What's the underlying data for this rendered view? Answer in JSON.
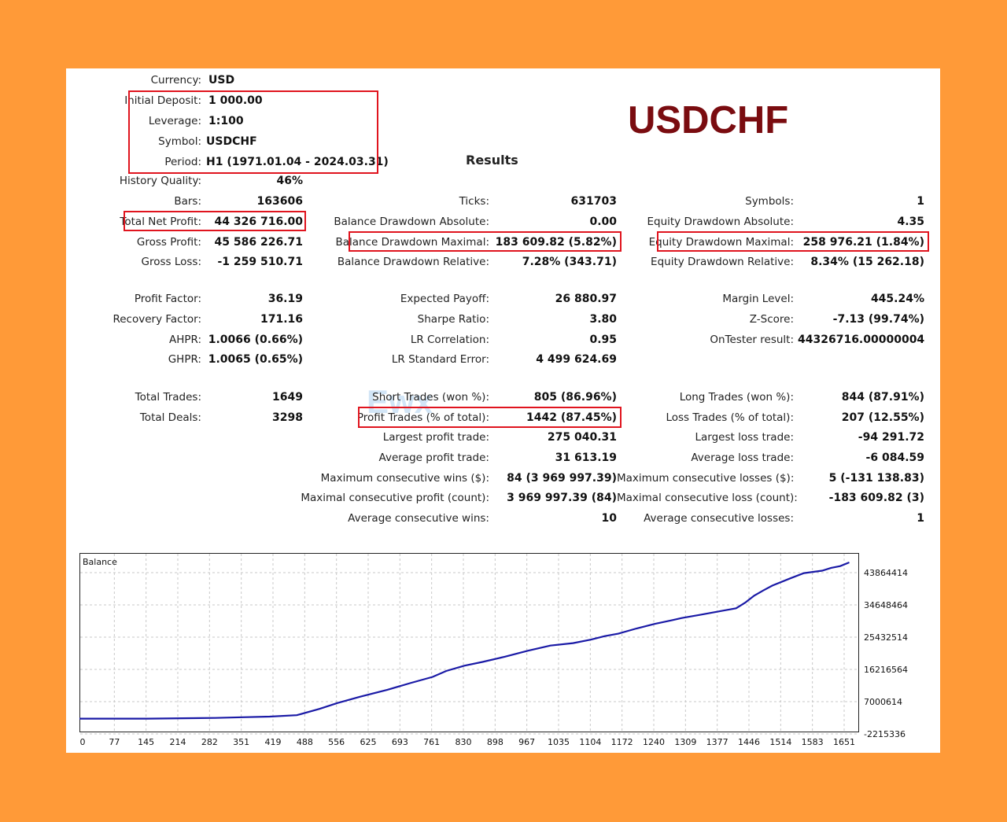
{
  "symbol_title": "USDCHF",
  "results_title": "Results",
  "watermark": "Ewx",
  "left_top": [
    {
      "label": "Currency:",
      "value": "USD"
    },
    {
      "label": "Initial Deposit:",
      "value": "1 000.00"
    },
    {
      "label": "Leverage:",
      "value": "1:100"
    },
    {
      "label": "Symbol:",
      "value": "USDCHF"
    },
    {
      "label": "Period:",
      "value": "H1 (1971.01.04 - 2024.03.31)"
    }
  ],
  "history_quality": {
    "label": "History Quality:",
    "value": "46%"
  },
  "col1": [
    {
      "label": "Bars:",
      "value": "163606"
    },
    {
      "label": "Total Net Profit:",
      "value": "44 326 716.00"
    },
    {
      "label": "Gross Profit:",
      "value": "45 586 226.71"
    },
    {
      "label": "Gross Loss:",
      "value": "-1 259 510.71"
    },
    {
      "label": "Profit Factor:",
      "value": "36.19"
    },
    {
      "label": "Recovery Factor:",
      "value": "171.16"
    },
    {
      "label": "AHPR:",
      "value": "1.0066 (0.66%)"
    },
    {
      "label": "GHPR:",
      "value": "1.0065 (0.65%)"
    },
    {
      "label": "Total Trades:",
      "value": "1649"
    },
    {
      "label": "Total Deals:",
      "value": "3298"
    }
  ],
  "col2": [
    {
      "label": "Ticks:",
      "value": "631703"
    },
    {
      "label": "Balance Drawdown Absolute:",
      "value": "0.00"
    },
    {
      "label": "Balance Drawdown Maximal:",
      "value": "183 609.82 (5.82%)"
    },
    {
      "label": "Balance Drawdown Relative:",
      "value": "7.28% (343.71)"
    },
    {
      "label": "Expected Payoff:",
      "value": "26 880.97"
    },
    {
      "label": "Sharpe Ratio:",
      "value": "3.80"
    },
    {
      "label": "LR Correlation:",
      "value": "0.95"
    },
    {
      "label": "LR Standard Error:",
      "value": "4 499 624.69"
    },
    {
      "label": "Short Trades (won %):",
      "value": "805 (86.96%)"
    },
    {
      "label": "Profit Trades (% of total):",
      "value": "1442 (87.45%)"
    },
    {
      "label": "Largest profit trade:",
      "value": "275 040.31"
    },
    {
      "label": "Average profit trade:",
      "value": "31 613.19"
    },
    {
      "label": "Maximum consecutive wins ($):",
      "value": "84 (3 969 997.39)"
    },
    {
      "label": "Maximal consecutive profit (count):",
      "value": "3 969 997.39 (84)"
    },
    {
      "label": "Average consecutive wins:",
      "value": "10"
    }
  ],
  "col3": [
    {
      "label": "Symbols:",
      "value": "1"
    },
    {
      "label": "Equity Drawdown Absolute:",
      "value": "4.35"
    },
    {
      "label": "Equity Drawdown Maximal:",
      "value": "258 976.21 (1.84%)"
    },
    {
      "label": "Equity Drawdown Relative:",
      "value": "8.34% (15 262.18)"
    },
    {
      "label": "Margin Level:",
      "value": "445.24%"
    },
    {
      "label": "Z-Score:",
      "value": "-7.13 (99.74%)"
    },
    {
      "label": "OnTester result:",
      "value": "44326716.00000004"
    },
    {
      "label": "Long Trades (won %):",
      "value": "844 (87.91%)"
    },
    {
      "label": "Loss Trades (% of total):",
      "value": "207 (12.55%)"
    },
    {
      "label": "Largest loss trade:",
      "value": "-94 291.72"
    },
    {
      "label": "Average loss trade:",
      "value": "-6 084.59"
    },
    {
      "label": "Maximum consecutive losses ($):",
      "value": "5 (-131 138.83)"
    },
    {
      "label": "Maximal consecutive loss (count):",
      "value": "-183 609.82 (3)"
    },
    {
      "label": "Average consecutive losses:",
      "value": "1"
    }
  ],
  "highlight_color": "#E0141E",
  "title_color": "#7A0C10",
  "line_color": "#1A1AA6",
  "chart_data": {
    "type": "line",
    "title": "Balance",
    "x_ticks": [
      "0",
      "77",
      "145",
      "214",
      "282",
      "351",
      "419",
      "488",
      "556",
      "625",
      "693",
      "761",
      "830",
      "898",
      "967",
      "1035",
      "1104",
      "1172",
      "1240",
      "1309",
      "1377",
      "1446",
      "1514",
      "1583",
      "1651"
    ],
    "y_ticks": [
      "43864414",
      "34648464",
      "25432514",
      "16216564",
      "7000614",
      "-2215336"
    ],
    "xlim": [
      0,
      1720
    ],
    "ylim": [
      -2215336,
      43864414
    ],
    "series": [
      {
        "x": [
          0,
          150,
          300,
          360,
          420,
          480,
          530,
          570,
          620,
          680,
          730,
          780,
          810,
          850,
          890,
          940,
          990,
          1040,
          1090,
          1130,
          1160,
          1190,
          1230,
          1270,
          1310,
          1330,
          1370,
          1420,
          1450,
          1470,
          1490,
          1510,
          1530,
          1570,
          1600,
          1640,
          1660,
          1680,
          1700
        ],
        "y": [
          -1000000,
          -1000000,
          -800000,
          -600000,
          -400000,
          0,
          1800000,
          3500000,
          5300000,
          7300000,
          9200000,
          11000000,
          12700000,
          14200000,
          15300000,
          16800000,
          18500000,
          20000000,
          20700000,
          21700000,
          22700000,
          23400000,
          24900000,
          26200000,
          27300000,
          27900000,
          28800000,
          30000000,
          30700000,
          32300000,
          34300000,
          35800000,
          37200000,
          39300000,
          40800000,
          41500000,
          42300000,
          42800000,
          43864414
        ]
      }
    ]
  }
}
